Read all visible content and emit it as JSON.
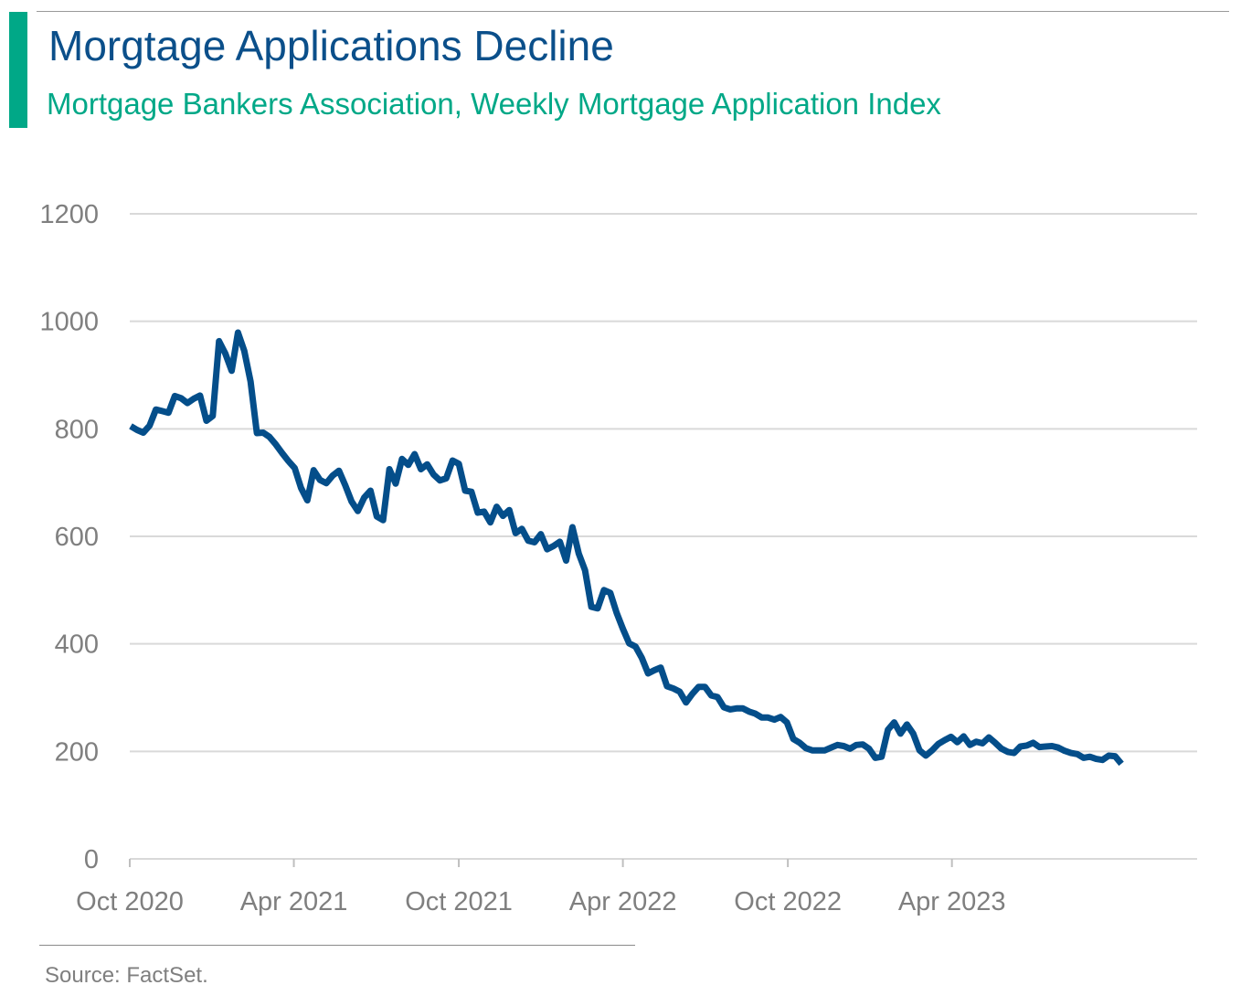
{
  "header": {
    "title": "Morgtage Applications Decline",
    "subtitle": "Mortgage Bankers Association, Weekly Mortgage Application Index"
  },
  "footer": {
    "source": "Source: FactSet."
  },
  "colors": {
    "accent": "#00a887",
    "title": "#0b4f8a",
    "subtitle": "#00a887",
    "line": "#044e8a",
    "grid": "#d9d9d9",
    "axis_text": "#7f7f7f"
  },
  "chart_data": {
    "type": "line",
    "title": "Morgtage Applications Decline",
    "subtitle": "Mortgage Bankers Association, Weekly Mortgage Application Index",
    "xlabel": "",
    "ylabel": "",
    "ylim": [
      0,
      1200
    ],
    "yticks": [
      0,
      200,
      400,
      600,
      800,
      1000,
      1200
    ],
    "xlim": [
      "2020-10-01",
      "2023-12-29"
    ],
    "xticks": [
      {
        "date": "2020-10-01",
        "label": "Oct 2020"
      },
      {
        "date": "2021-04-01",
        "label": "Apr 2021"
      },
      {
        "date": "2021-10-01",
        "label": "Oct 2021"
      },
      {
        "date": "2022-04-01",
        "label": "Apr 2022"
      },
      {
        "date": "2022-10-01",
        "label": "Oct 2022"
      },
      {
        "date": "2023-04-01",
        "label": "Apr 2023"
      }
    ],
    "grid": true,
    "legend": "none",
    "series": [
      {
        "values": [
          [
            "2020-10-02",
            805
          ],
          [
            "2020-10-09",
            798
          ],
          [
            "2020-10-16",
            793
          ],
          [
            "2020-10-23",
            806
          ],
          [
            "2020-10-30",
            836
          ],
          [
            "2020-11-06",
            833
          ],
          [
            "2020-11-13",
            830
          ],
          [
            "2020-11-20",
            861
          ],
          [
            "2020-11-27",
            857
          ],
          [
            "2020-12-04",
            848
          ],
          [
            "2020-12-11",
            856
          ],
          [
            "2020-12-18",
            862
          ],
          [
            "2020-12-25",
            815
          ],
          [
            "2021-01-01",
            824
          ],
          [
            "2021-01-08",
            963
          ],
          [
            "2021-01-15",
            940
          ],
          [
            "2021-01-22",
            908
          ],
          [
            "2021-01-29",
            979
          ],
          [
            "2021-02-05",
            945
          ],
          [
            "2021-02-12",
            888
          ],
          [
            "2021-02-19",
            792
          ],
          [
            "2021-02-26",
            793
          ],
          [
            "2021-03-05",
            785
          ],
          [
            "2021-03-12",
            771
          ],
          [
            "2021-03-19",
            755
          ],
          [
            "2021-03-26",
            740
          ],
          [
            "2021-04-02",
            727
          ],
          [
            "2021-04-09",
            690
          ],
          [
            "2021-04-16",
            667
          ],
          [
            "2021-04-23",
            723
          ],
          [
            "2021-04-30",
            705
          ],
          [
            "2021-05-07",
            699
          ],
          [
            "2021-05-14",
            713
          ],
          [
            "2021-05-21",
            722
          ],
          [
            "2021-05-28",
            695
          ],
          [
            "2021-06-04",
            665
          ],
          [
            "2021-06-11",
            647
          ],
          [
            "2021-06-18",
            672
          ],
          [
            "2021-06-25",
            685
          ],
          [
            "2021-07-02",
            637
          ],
          [
            "2021-07-09",
            630
          ],
          [
            "2021-07-16",
            725
          ],
          [
            "2021-07-23",
            698
          ],
          [
            "2021-07-30",
            744
          ],
          [
            "2021-08-06",
            733
          ],
          [
            "2021-08-13",
            753
          ],
          [
            "2021-08-20",
            725
          ],
          [
            "2021-08-27",
            734
          ],
          [
            "2021-09-03",
            715
          ],
          [
            "2021-09-10",
            704
          ],
          [
            "2021-09-17",
            708
          ],
          [
            "2021-09-24",
            741
          ],
          [
            "2021-10-01",
            735
          ],
          [
            "2021-10-08",
            685
          ],
          [
            "2021-10-15",
            683
          ],
          [
            "2021-10-22",
            644
          ],
          [
            "2021-10-29",
            646
          ],
          [
            "2021-11-05",
            626
          ],
          [
            "2021-11-12",
            655
          ],
          [
            "2021-11-19",
            638
          ],
          [
            "2021-11-26",
            649
          ],
          [
            "2021-12-03",
            606
          ],
          [
            "2021-12-10",
            614
          ],
          [
            "2021-12-17",
            592
          ],
          [
            "2021-12-24",
            589
          ],
          [
            "2021-12-31",
            604
          ],
          [
            "2022-01-07",
            576
          ],
          [
            "2022-01-14",
            582
          ],
          [
            "2022-01-21",
            590
          ],
          [
            "2022-01-28",
            555
          ],
          [
            "2022-02-04",
            617
          ],
          [
            "2022-02-11",
            568
          ],
          [
            "2022-02-18",
            537
          ],
          [
            "2022-02-25",
            469
          ],
          [
            "2022-03-04",
            466
          ],
          [
            "2022-03-11",
            500
          ],
          [
            "2022-03-18",
            495
          ],
          [
            "2022-03-25",
            458
          ],
          [
            "2022-04-01",
            428
          ],
          [
            "2022-04-08",
            401
          ],
          [
            "2022-04-15",
            395
          ],
          [
            "2022-04-22",
            374
          ],
          [
            "2022-04-29",
            345
          ],
          [
            "2022-05-06",
            351
          ],
          [
            "2022-05-13",
            356
          ],
          [
            "2022-05-20",
            321
          ],
          [
            "2022-05-27",
            317
          ],
          [
            "2022-06-03",
            311
          ],
          [
            "2022-06-10",
            291
          ],
          [
            "2022-06-17",
            307
          ],
          [
            "2022-06-24",
            320
          ],
          [
            "2022-07-01",
            320
          ],
          [
            "2022-07-08",
            304
          ],
          [
            "2022-07-15",
            301
          ],
          [
            "2022-07-22",
            282
          ],
          [
            "2022-07-29",
            278
          ],
          [
            "2022-08-05",
            280
          ],
          [
            "2022-08-12",
            280
          ],
          [
            "2022-08-19",
            274
          ],
          [
            "2022-08-26",
            270
          ],
          [
            "2022-09-02",
            263
          ],
          [
            "2022-09-09",
            263
          ],
          [
            "2022-09-16",
            259
          ],
          [
            "2022-09-23",
            264
          ],
          [
            "2022-09-30",
            254
          ],
          [
            "2022-10-07",
            223
          ],
          [
            "2022-10-14",
            216
          ],
          [
            "2022-10-21",
            206
          ],
          [
            "2022-10-28",
            202
          ],
          [
            "2022-11-04",
            202
          ],
          [
            "2022-11-11",
            202
          ],
          [
            "2022-11-18",
            207
          ],
          [
            "2022-11-25",
            212
          ],
          [
            "2022-12-02",
            210
          ],
          [
            "2022-12-09",
            205
          ],
          [
            "2022-12-16",
            212
          ],
          [
            "2022-12-23",
            213
          ],
          [
            "2022-12-30",
            205
          ],
          [
            "2023-01-06",
            188
          ],
          [
            "2023-01-13",
            190
          ],
          [
            "2023-01-20",
            240
          ],
          [
            "2023-01-27",
            254
          ],
          [
            "2023-02-03",
            233
          ],
          [
            "2023-02-10",
            250
          ],
          [
            "2023-02-17",
            233
          ],
          [
            "2023-02-24",
            202
          ],
          [
            "2023-03-03",
            192
          ],
          [
            "2023-03-10",
            202
          ],
          [
            "2023-03-17",
            214
          ],
          [
            "2023-03-24",
            221
          ],
          [
            "2023-03-31",
            227
          ],
          [
            "2023-04-07",
            217
          ],
          [
            "2023-04-14",
            228
          ],
          [
            "2023-04-21",
            212
          ],
          [
            "2023-04-28",
            218
          ],
          [
            "2023-05-05",
            215
          ],
          [
            "2023-05-12",
            226
          ],
          [
            "2023-05-19",
            216
          ],
          [
            "2023-05-26",
            205
          ],
          [
            "2023-06-02",
            199
          ],
          [
            "2023-06-09",
            197
          ],
          [
            "2023-06-16",
            209
          ],
          [
            "2023-06-23",
            211
          ],
          [
            "2023-06-30",
            216
          ],
          [
            "2023-07-07",
            208
          ],
          [
            "2023-07-14",
            209
          ],
          [
            "2023-07-21",
            210
          ],
          [
            "2023-07-28",
            207
          ],
          [
            "2023-08-04",
            201
          ],
          [
            "2023-08-11",
            197
          ],
          [
            "2023-08-18",
            195
          ],
          [
            "2023-08-25",
            188
          ],
          [
            "2023-09-01",
            190
          ],
          [
            "2023-09-08",
            186
          ],
          [
            "2023-09-15",
            184
          ],
          [
            "2023-09-22",
            192
          ],
          [
            "2023-09-29",
            191
          ],
          [
            "2023-10-06",
            177
          ]
        ]
      }
    ]
  }
}
